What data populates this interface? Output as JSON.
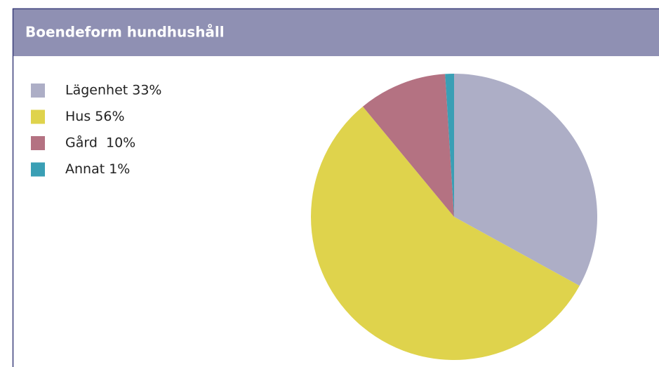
{
  "chart_data": {
    "type": "pie",
    "title": "Boendeform hundhushåll",
    "categories": [
      "Lägenhet 33%",
      "Hus 56%",
      "Gård  10%",
      "Annat 1%"
    ],
    "values": [
      33,
      56,
      10,
      1
    ],
    "colors": [
      "#adaec6",
      "#dfd34c",
      "#b47282",
      "#3a9fb5"
    ]
  }
}
